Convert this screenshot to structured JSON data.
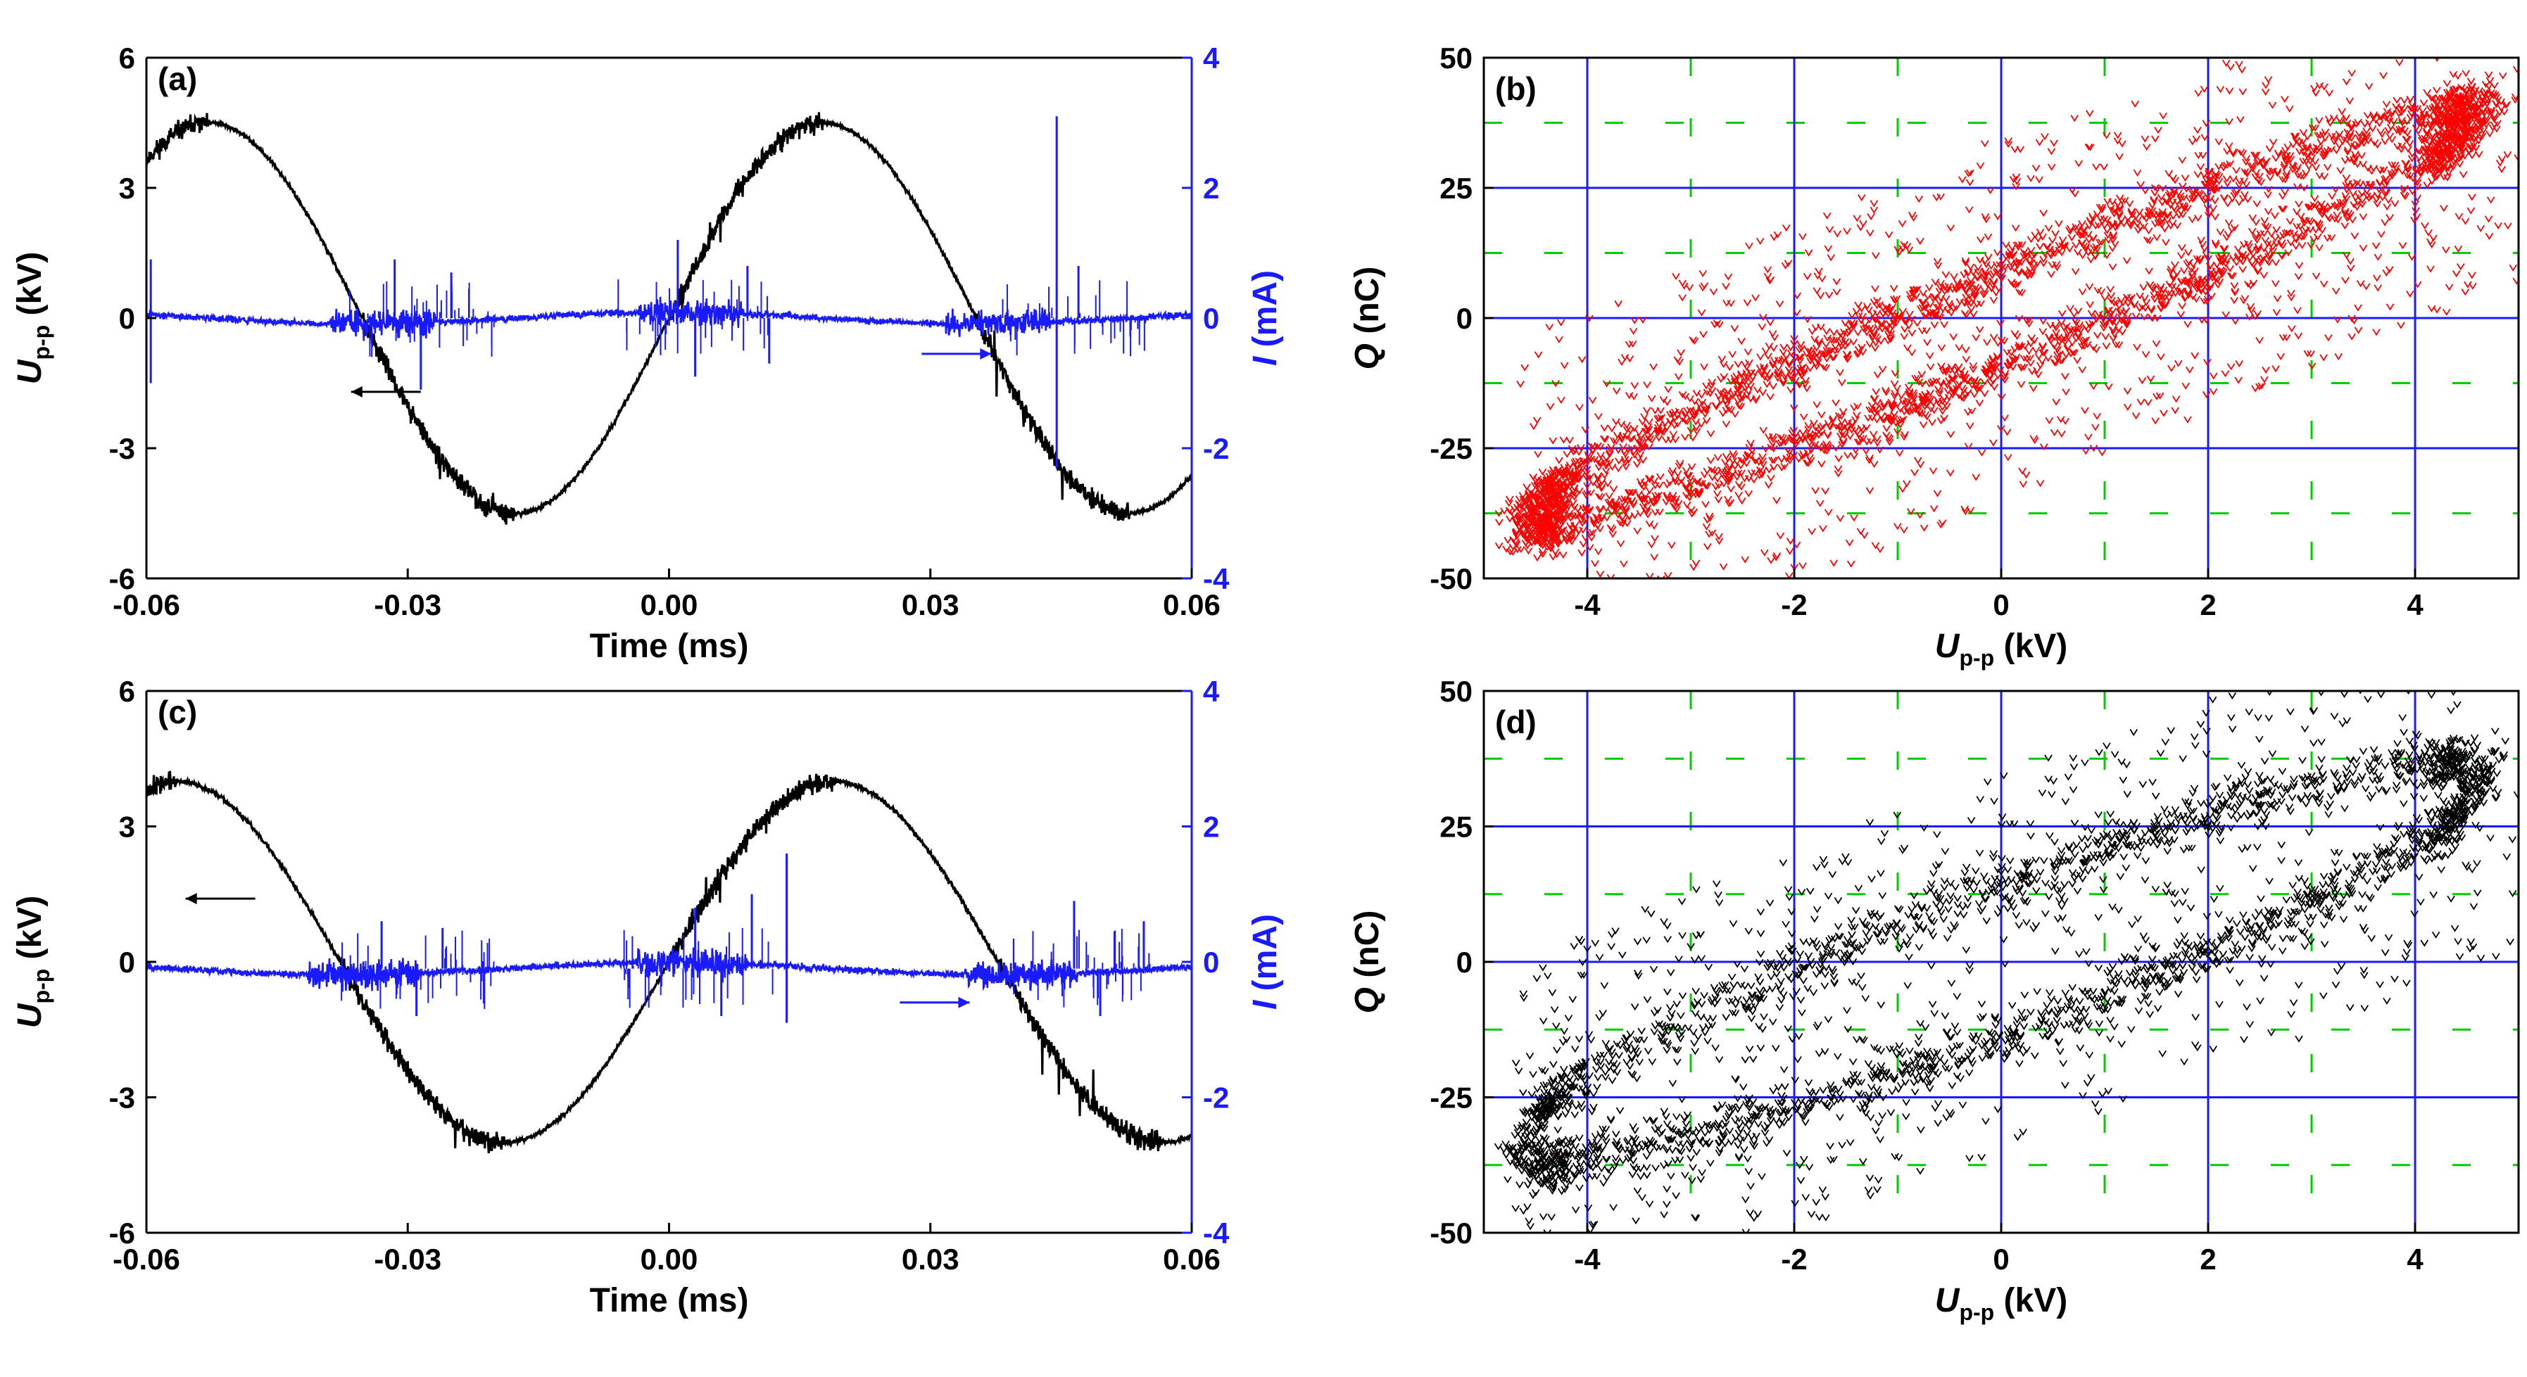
{
  "colors": {
    "voltage": "#000000",
    "current": "#1a1aff",
    "lissajous_b": "#ff0000",
    "lissajous_d": "#000000",
    "grid_major": "#1a1aff",
    "grid_minor": "#00cc00"
  },
  "chart_data": [
    {
      "id": "a",
      "type": "line",
      "panel_label": "(a)",
      "xlabel": "Time (ms)",
      "ylabel_left": {
        "main": "U",
        "sub": "p-p",
        "unit": " (kV)"
      },
      "ylabel_right": {
        "main": "I",
        "unit": " (mA)"
      },
      "xlim": [
        -0.06,
        0.06
      ],
      "ylim_left": [
        -6,
        6
      ],
      "ylim_right": [
        -4,
        4
      ],
      "x_ticks": [
        "-0.06",
        "-0.03",
        "0.00",
        "0.03",
        "0.06"
      ],
      "y_ticks_left": [
        "-6",
        "-3",
        "0",
        "3",
        "6"
      ],
      "y_ticks_right": [
        "-4",
        "-2",
        "0",
        "2",
        "4"
      ],
      "series": [
        {
          "axis": "left",
          "form": "sine",
          "amplitude": 4.5,
          "period_ms": 0.0705,
          "phase_zero_ms": 0.0,
          "noise": "bursts"
        },
        {
          "axis": "right",
          "form": "discharge-current",
          "baseline_mA": 0.0,
          "spikes": [
            {
              "t": -0.0315,
              "v": 0.9
            },
            {
              "t": -0.0285,
              "v": -1.1
            },
            {
              "t": -0.025,
              "v": 0.7
            },
            {
              "t": 0.001,
              "v": 1.2
            },
            {
              "t": 0.003,
              "v": -0.9
            },
            {
              "t": 0.009,
              "v": 0.8
            },
            {
              "t": 0.0115,
              "v": -0.7
            },
            {
              "t": 0.0445,
              "v": 3.1
            },
            {
              "t": 0.0445,
              "v": -2.3
            },
            {
              "t": 0.047,
              "v": 0.8
            },
            {
              "t": -0.0595,
              "v": 0.9
            },
            {
              "t": -0.0595,
              "v": -1.0
            }
          ]
        }
      ],
      "arrows": [
        {
          "direction": "left",
          "axis": "left",
          "x": -0.0365,
          "y": -1.7,
          "length": 0.008
        },
        {
          "direction": "right",
          "axis": "right",
          "x": 0.029,
          "y": -0.55,
          "length": 0.008
        }
      ]
    },
    {
      "id": "b",
      "type": "scatter",
      "panel_label": "(b)",
      "xlabel": {
        "main": "U",
        "sub": "p-p",
        "unit": " (kV)"
      },
      "ylabel": {
        "main": "Q",
        "unit": " (nC)"
      },
      "xlim": [
        -5,
        5
      ],
      "ylim": [
        -50,
        50
      ],
      "x_ticks": [
        "-4",
        "-2",
        "0",
        "2",
        "4"
      ],
      "y_ticks": [
        "-50",
        "-25",
        "0",
        "25",
        "50"
      ],
      "grid_major_x": [
        -4,
        -2,
        0,
        2,
        4
      ],
      "grid_major_y": [
        -25,
        0,
        25
      ],
      "grid_minor_x": [
        -3,
        -1,
        1,
        3
      ],
      "grid_minor_y": [
        -37.5,
        -12.5,
        12.5,
        37.5
      ],
      "series": [
        {
          "form": "lissajous",
          "slope": 8.4,
          "loop_halfwidth_nC": 9,
          "points": 4200,
          "outlier_fraction": 0.22
        }
      ]
    },
    {
      "id": "c",
      "type": "line",
      "panel_label": "(c)",
      "xlabel": "Time (ms)",
      "ylabel_left": {
        "main": "U",
        "sub": "p-p",
        "unit": " (kV)"
      },
      "ylabel_right": {
        "main": "I",
        "unit": " (mA)"
      },
      "xlim": [
        -0.06,
        0.06
      ],
      "ylim_left": [
        -6,
        6
      ],
      "ylim_right": [
        -4,
        4
      ],
      "x_ticks": [
        "-0.06",
        "-0.03",
        "0.00",
        "0.03",
        "0.06"
      ],
      "y_ticks_left": [
        "-6",
        "-3",
        "0",
        "3",
        "6"
      ],
      "y_ticks_right": [
        "-4",
        "-2",
        "0",
        "2",
        "4"
      ],
      "series": [
        {
          "axis": "left",
          "form": "sine",
          "amplitude": 4.0,
          "period_ms": 0.0755,
          "phase_zero_ms": 0.0,
          "noise": "bursts"
        },
        {
          "axis": "right",
          "form": "discharge-current",
          "baseline_mA": -0.1,
          "spikes": [
            {
              "t": -0.033,
              "v": 0.6
            },
            {
              "t": -0.029,
              "v": -0.8
            },
            {
              "t": -0.026,
              "v": 0.5
            },
            {
              "t": 0.003,
              "v": 0.8
            },
            {
              "t": 0.006,
              "v": -0.8
            },
            {
              "t": 0.0095,
              "v": 1.0
            },
            {
              "t": 0.0135,
              "v": 1.6
            },
            {
              "t": 0.0135,
              "v": -0.9
            },
            {
              "t": 0.0465,
              "v": 0.9
            },
            {
              "t": 0.0495,
              "v": -0.8
            },
            {
              "t": 0.0545,
              "v": 0.6
            }
          ]
        }
      ],
      "arrows": [
        {
          "direction": "left",
          "axis": "left",
          "x": -0.0555,
          "y": 1.4,
          "length": 0.008
        },
        {
          "direction": "right",
          "axis": "right",
          "x": 0.0265,
          "y": -0.6,
          "length": 0.008
        }
      ]
    },
    {
      "id": "d",
      "type": "scatter",
      "panel_label": "(d)",
      "xlabel": {
        "main": "U",
        "sub": "p-p",
        "unit": " (kV)"
      },
      "ylabel": {
        "main": "Q",
        "unit": " (nC)"
      },
      "xlim": [
        -5,
        5
      ],
      "ylim": [
        -50,
        50
      ],
      "x_ticks": [
        "-4",
        "-2",
        "0",
        "2",
        "4"
      ],
      "y_ticks": [
        "-50",
        "-25",
        "0",
        "25",
        "50"
      ],
      "grid_major_x": [
        -4,
        -2,
        0,
        2,
        4
      ],
      "grid_major_y": [
        -25,
        0,
        25
      ],
      "grid_minor_x": [
        -3,
        -1,
        1,
        3
      ],
      "grid_minor_y": [
        -37.5,
        -12.5,
        12.5,
        37.5
      ],
      "series": [
        {
          "form": "lissajous",
          "slope": 7.2,
          "loop_halfwidth_nC": 14,
          "points": 3200,
          "outlier_fraction": 0.25
        }
      ]
    }
  ]
}
